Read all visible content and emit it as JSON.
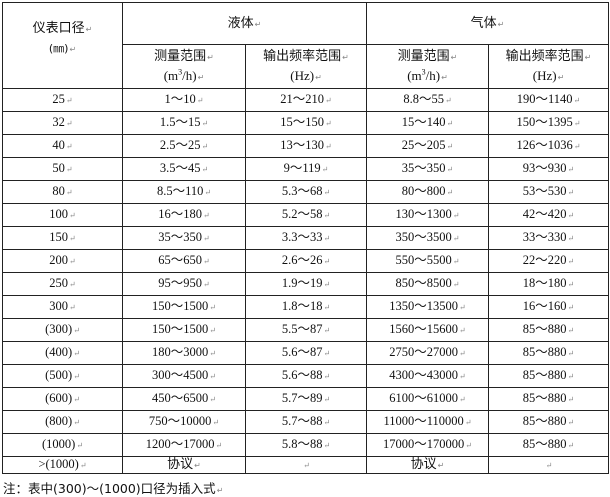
{
  "header": {
    "diameter_label": "仪表口径",
    "diameter_unit": "(㎜)",
    "liquid": "液体",
    "gas": "气体",
    "range_label": "测量范围",
    "range_unit_prefix": "(m",
    "range_unit_sup": "3",
    "range_unit_suffix": "/h)",
    "freq_label": "输出频率范围",
    "freq_unit": "(Hz)"
  },
  "rows": [
    {
      "d": "25",
      "lr": "1～10",
      "lf": "21～210",
      "gr": "8.8～55",
      "gf": "190～1140"
    },
    {
      "d": "32",
      "lr": "1.5～15",
      "lf": "15～150",
      "gr": "15～140",
      "gf": "150～1395"
    },
    {
      "d": "40",
      "lr": "2.5～25",
      "lf": "13～130",
      "gr": "25～205",
      "gf": "126～1036"
    },
    {
      "d": "50",
      "lr": "3.5～45",
      "lf": "9～119",
      "gr": "35～350",
      "gf": "93～930"
    },
    {
      "d": "80",
      "lr": "8.5～110",
      "lf": "5.3～68",
      "gr": "80～800",
      "gf": "53～530"
    },
    {
      "d": "100",
      "lr": "16～180",
      "lf": "5.2～58",
      "gr": "130～1300",
      "gf": "42～420"
    },
    {
      "d": "150",
      "lr": "35～350",
      "lf": "3.3～33",
      "gr": "350～3500",
      "gf": "33～330"
    },
    {
      "d": "200",
      "lr": "65～650",
      "lf": "2.6～26",
      "gr": "550～5500",
      "gf": "22～220"
    },
    {
      "d": "250",
      "lr": "95～950",
      "lf": "1.9～19",
      "gr": "850～8500",
      "gf": "18～180"
    },
    {
      "d": "300",
      "lr": "150～1500",
      "lf": "1.8～18",
      "gr": "1350～13500",
      "gf": "16～160"
    },
    {
      "d": "(300)",
      "lr": "150～1500",
      "lf": "5.5～87",
      "gr": "1560～15600",
      "gf": "85～880"
    },
    {
      "d": "(400)",
      "lr": "180～3000",
      "lf": "5.6～87",
      "gr": "2750～27000",
      "gf": "85～880"
    },
    {
      "d": "(500)",
      "lr": "300～4500",
      "lf": "5.6～88",
      "gr": "4300～43000",
      "gf": "85～880"
    },
    {
      "d": "(600)",
      "lr": "450～6500",
      "lf": "5.7～89",
      "gr": "6100～61000",
      "gf": "85～880"
    },
    {
      "d": "(800)",
      "lr": "750～10000",
      "lf": "5.7～88",
      "gr": "11000～110000",
      "gf": "85～880"
    },
    {
      "d": "(1000)",
      "lr": "1200～17000",
      "lf": "5.8～88",
      "gr": "17000～170000",
      "gf": "85～880"
    },
    {
      "d": ">(1000)",
      "lr": "协议",
      "lf": "",
      "gr": "协议",
      "gf": ""
    }
  ],
  "note": "注：表中(300)～(1000)口径为插入式"
}
